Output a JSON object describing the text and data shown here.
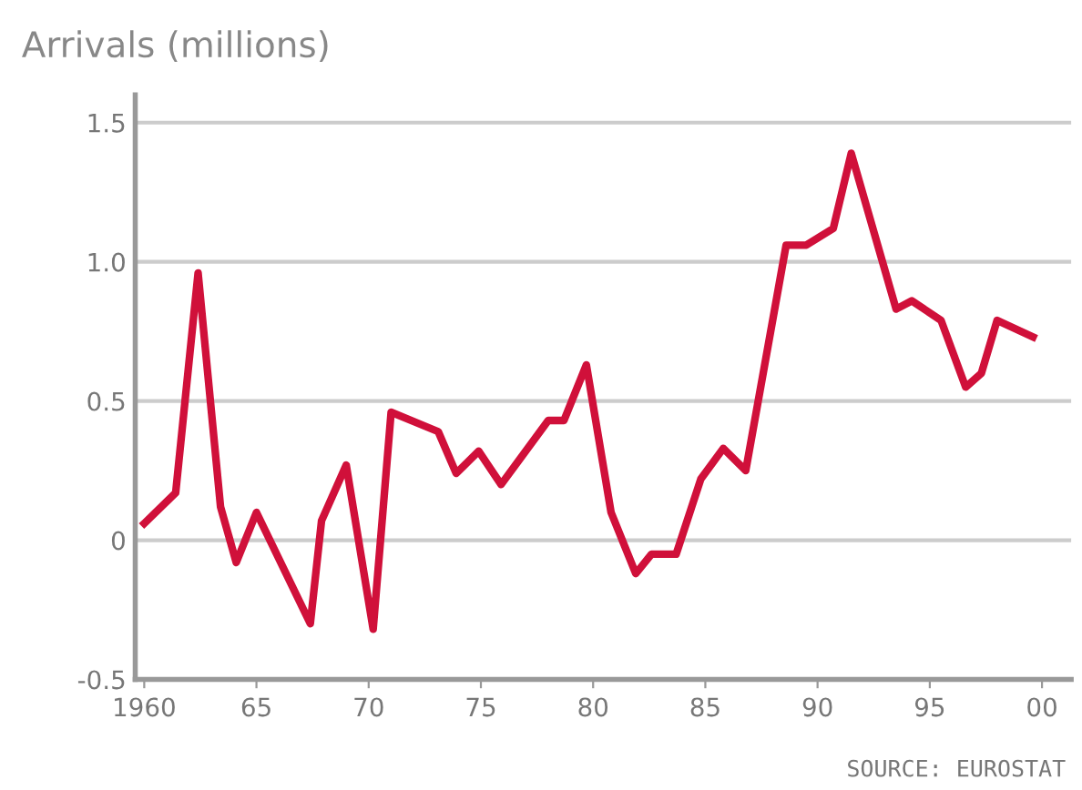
{
  "chart_data": {
    "type": "line",
    "title": "Arrivals (millions)",
    "annotations": [
      "SOURCE: EUROSTAT"
    ],
    "series": [
      {
        "color": "#d0103a",
        "x": [
          1960,
          1961.4,
          1962.4,
          1963.4,
          1964.1,
          1965.0,
          1967.4,
          1967.9,
          1969.0,
          1970.2,
          1971.0,
          1973.1,
          1973.9,
          1974.9,
          1975.9,
          1978.0,
          1978.7,
          1979.7,
          1980.8,
          1981.9,
          1982.6,
          1983.7,
          1984.8,
          1985.8,
          1986.8,
          1988.6,
          1989.5,
          1990.7,
          1991.5,
          1993.5,
          1994.2,
          1995.5,
          1996.6,
          1997.3,
          1998.0,
          1999.6
        ],
        "values": [
          0.06,
          0.17,
          0.96,
          0.12,
          -0.08,
          0.1,
          -0.3,
          0.07,
          0.27,
          -0.32,
          0.46,
          0.39,
          0.24,
          0.32,
          0.2,
          0.43,
          0.43,
          0.63,
          0.1,
          -0.12,
          -0.05,
          -0.05,
          0.22,
          0.33,
          0.25,
          1.06,
          1.06,
          1.12,
          1.39,
          0.83,
          0.86,
          0.79,
          0.55,
          0.6,
          0.79,
          0.73
        ]
      }
    ],
    "xlim": [
      1959.6,
      2001.3
    ],
    "xticks": [
      {
        "value": 1960,
        "label": "1960"
      },
      {
        "value": 1965,
        "label": "65"
      },
      {
        "value": 1970,
        "label": "70"
      },
      {
        "value": 1975,
        "label": "75"
      },
      {
        "value": 1980,
        "label": "80"
      },
      {
        "value": 1985,
        "label": "85"
      },
      {
        "value": 1990,
        "label": "90"
      },
      {
        "value": 1995,
        "label": "95"
      },
      {
        "value": 2000,
        "label": "00"
      }
    ],
    "ylim": [
      -0.5,
      1.6
    ],
    "yticks": [
      {
        "value": -0.5,
        "label": "-0.5"
      },
      0,
      0.5,
      {
        "value": 1.0,
        "label": "1.0"
      },
      1.5
    ],
    "grid": "y",
    "line_style": "solid",
    "marker": "none"
  }
}
